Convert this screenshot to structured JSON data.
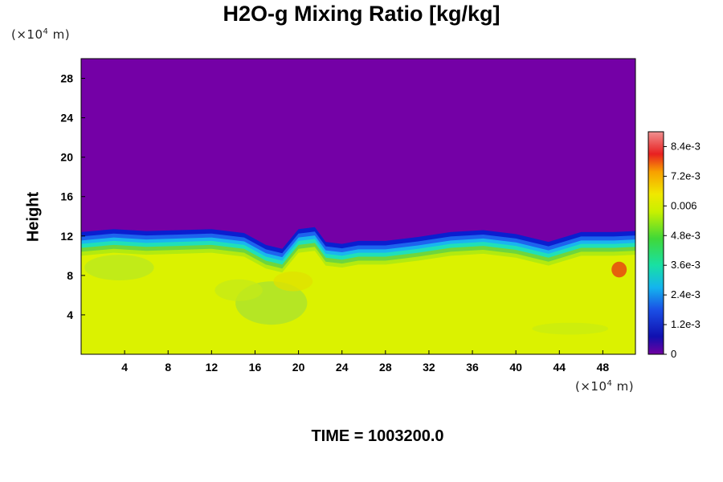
{
  "chart_data": {
    "type": "heatmap",
    "title": "H2O-g Mixing Ratio [kg/kg]",
    "xlabel": "",
    "ylabel": "Height",
    "x_unit_prefix": "(×10",
    "x_unit_exp": "4",
    "x_unit_suffix": " m)",
    "y_unit_prefix": "(×10",
    "y_unit_exp": "4",
    "y_unit_suffix": " m)",
    "xlim": [
      0,
      51
    ],
    "ylim": [
      0,
      30
    ],
    "x_ticks": [
      4,
      8,
      12,
      16,
      20,
      24,
      28,
      32,
      36,
      40,
      44,
      48
    ],
    "y_ticks": [
      4,
      8,
      12,
      16,
      20,
      24,
      28
    ],
    "colorbar": {
      "range": [
        0,
        0.009
      ],
      "ticks": [
        {
          "value": 0,
          "label": "0"
        },
        {
          "value": 0.0012,
          "label": "1.2e-3"
        },
        {
          "value": 0.0024,
          "label": "2.4e-3"
        },
        {
          "value": 0.0036,
          "label": "3.6e-3"
        },
        {
          "value": 0.0048,
          "label": "4.8e-3"
        },
        {
          "value": 0.006,
          "label": "0.006"
        },
        {
          "value": 0.0072,
          "label": "7.2e-3"
        },
        {
          "value": 0.0084,
          "label": "8.4e-3"
        }
      ]
    },
    "field_summary": {
      "lower_layer_value": 0.0062,
      "upper_layer_value": 0.0,
      "interface_height": [
        [
          0,
          11.5
        ],
        [
          3,
          11.8
        ],
        [
          6,
          11.6
        ],
        [
          9,
          11.7
        ],
        [
          12,
          11.8
        ],
        [
          15,
          11.4
        ],
        [
          17,
          10.2
        ],
        [
          18.5,
          9.8
        ],
        [
          20,
          11.8
        ],
        [
          21.5,
          12.0
        ],
        [
          22.5,
          10.5
        ],
        [
          24,
          10.3
        ],
        [
          25.5,
          10.6
        ],
        [
          28,
          10.6
        ],
        [
          31,
          11.0
        ],
        [
          34,
          11.5
        ],
        [
          37,
          11.7
        ],
        [
          40,
          11.3
        ],
        [
          43,
          10.5
        ],
        [
          46,
          11.5
        ],
        [
          49,
          11.5
        ],
        [
          51,
          11.6
        ]
      ]
    }
  },
  "time_label": "TIME = 1003200.0",
  "colors": {
    "upper": "#7400a6",
    "lower": "#dbf200",
    "interface_bands": [
      "#0a1ed0",
      "#1d63ee",
      "#19b6ee",
      "#20e0b8",
      "#6ed63c",
      "#b2ea10"
    ]
  }
}
